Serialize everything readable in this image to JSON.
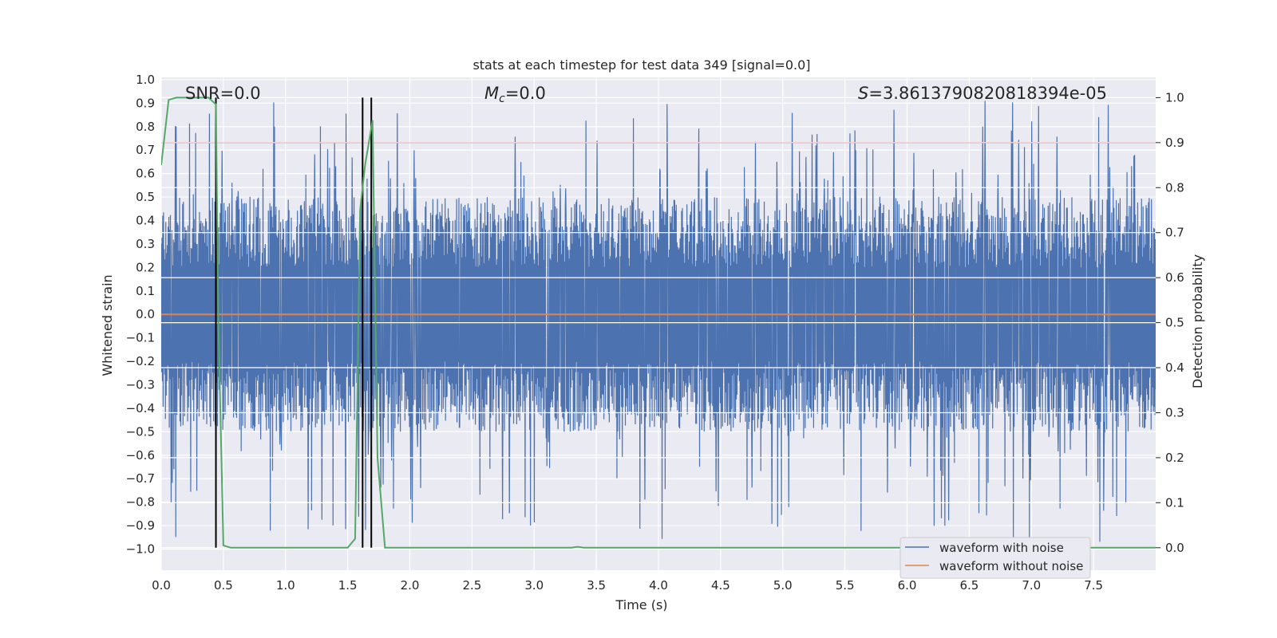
{
  "chart_data": {
    "type": "line",
    "title": "stats at each timestep for test data 349 [signal=0.0]",
    "xlabel": "Time (s)",
    "ylabel": "Whitened strain",
    "y2label": "Detection probability",
    "xlim": [
      0.0,
      8.0
    ],
    "ylim": [
      -1.09,
      1.01
    ],
    "y2lim": [
      -0.05,
      1.045
    ],
    "xticks": [
      "0.0",
      "0.5",
      "1.0",
      "1.5",
      "2.0",
      "2.5",
      "3.0",
      "3.5",
      "4.0",
      "4.5",
      "5.0",
      "5.5",
      "6.0",
      "6.5",
      "7.0",
      "7.5"
    ],
    "yticks": [
      "1.0",
      "0.9",
      "0.8",
      "0.7",
      "0.6",
      "0.5",
      "0.4",
      "0.3",
      "0.2",
      "0.1",
      "0.0",
      "-0.1",
      "-0.2",
      "-0.3",
      "-0.4",
      "-0.5",
      "-0.6",
      "-0.7",
      "-0.8",
      "-0.9",
      "-1.0"
    ],
    "y2ticks": [
      "1.0",
      "0.9",
      "0.8",
      "0.7",
      "0.6",
      "0.5",
      "0.4",
      "0.3",
      "0.2",
      "0.1",
      "0.0"
    ],
    "annotations": {
      "snr": "SNR=0.0",
      "mc_symbol": "M",
      "mc_sub": "c",
      "mc_value": "=0.0",
      "s_symbol": "S",
      "s_value": "=3.8613790820818394e-05"
    },
    "series": [
      {
        "name": "waveform with noise",
        "color": "#4c72b0",
        "kind": "noise",
        "noise_band": [
          -0.45,
          0.5
        ],
        "peaks_max": 0.91,
        "peaks_min": -0.97
      },
      {
        "name": "waveform without noise",
        "color": "#dd8452",
        "y": 0.0
      }
    ],
    "detection_probability": {
      "color": "#55a868",
      "x": [
        0.0,
        0.06,
        0.12,
        0.2,
        0.3,
        0.38,
        0.44,
        0.46,
        0.5,
        0.56,
        0.65,
        1.0,
        1.45,
        1.5,
        1.56,
        1.6,
        1.64,
        1.7,
        1.74,
        1.8,
        1.9,
        2.5,
        3.3,
        3.35,
        3.4,
        4.0,
        5.0,
        6.0,
        7.0,
        8.0
      ],
      "y": [
        0.85,
        0.995,
        1.0,
        1.0,
        1.0,
        1.0,
        0.985,
        0.5,
        0.005,
        0.0,
        0.0,
        0.0,
        0.0,
        0.0,
        0.02,
        0.75,
        0.85,
        0.95,
        0.2,
        0.0,
        0.0,
        0.0,
        0.0,
        0.002,
        0.0,
        0.0,
        0.0,
        0.0,
        0.0,
        0.0
      ]
    },
    "threshold": {
      "value": 0.9,
      "color": "#c44e52"
    },
    "vertical_lines": [
      0.44,
      1.62,
      1.69
    ],
    "legend_position": "lower-right"
  }
}
